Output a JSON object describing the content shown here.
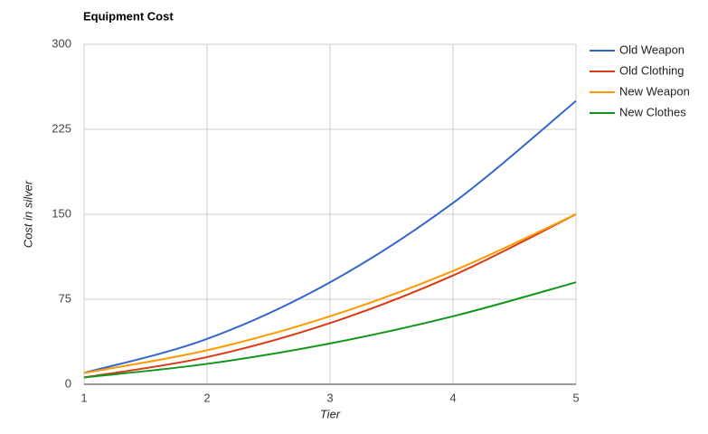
{
  "chart_data": {
    "type": "line",
    "title": "Equipment Cost",
    "x_label": "Tier",
    "y_label": "Cost in silver",
    "x": [
      1,
      2,
      3,
      4,
      5
    ],
    "series": [
      {
        "name": "Old Weapon",
        "color": "#3366cc",
        "values": [
          10,
          40,
          90,
          160,
          250
        ]
      },
      {
        "name": "Old Clothing",
        "color": "#dc3912",
        "values": [
          6,
          24,
          54,
          96,
          150
        ]
      },
      {
        "name": "New Weapon",
        "color": "#ff9900",
        "values": [
          10,
          30,
          60,
          100,
          150
        ]
      },
      {
        "name": "New Clothes",
        "color": "#109618",
        "values": [
          6,
          18,
          36,
          60,
          90
        ]
      }
    ],
    "xlim": [
      1,
      5
    ],
    "xticks": [
      1,
      2,
      3,
      4,
      5
    ],
    "ylim": [
      0,
      300
    ],
    "yticks": [
      0,
      75,
      150,
      225,
      300
    ],
    "grid": true,
    "legend": "right"
  }
}
